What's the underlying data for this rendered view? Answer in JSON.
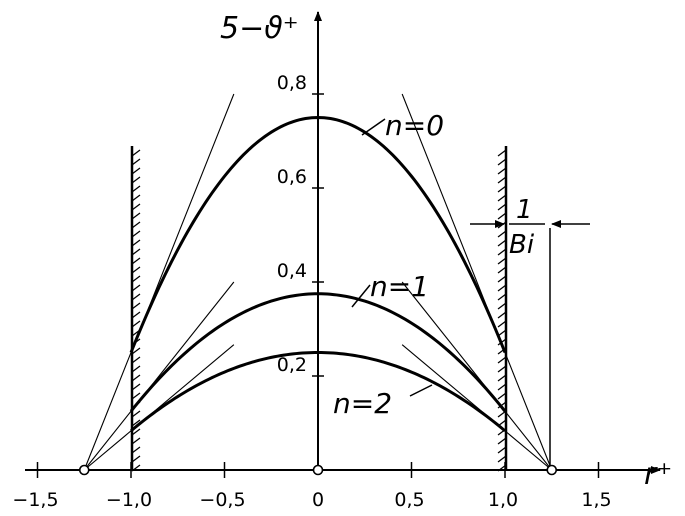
{
  "chart_data": {
    "type": "line",
    "title": "",
    "ylabel": "5−ϑ⁺",
    "xlabel": "r⁺",
    "xlim": [
      -1.6,
      1.75
    ],
    "ylim": [
      0,
      0.95
    ],
    "x_ticks": [
      {
        "v": -1.5,
        "label": "−1,5"
      },
      {
        "v": -1.0,
        "label": "−1,0"
      },
      {
        "v": -0.5,
        "label": "−0,5"
      },
      {
        "v": 0.0,
        "label": "0"
      },
      {
        "v": 0.5,
        "label": "0,5"
      },
      {
        "v": 1.0,
        "label": "1,0"
      },
      {
        "v": 1.5,
        "label": "1,5"
      }
    ],
    "y_ticks": [
      {
        "v": 0.2,
        "label": "0,2"
      },
      {
        "v": 0.4,
        "label": "0,4"
      },
      {
        "v": 0.6,
        "label": "0,6"
      },
      {
        "v": 0.8,
        "label": "0,8"
      }
    ],
    "wall_x": [
      -1.0,
      1.0
    ],
    "tangent_point_x": 1.25,
    "series": [
      {
        "name": "n=0",
        "peak": 0.75,
        "wall_value": 0.25
      },
      {
        "name": "n=1",
        "peak": 0.375,
        "wall_value": 0.125
      },
      {
        "name": "n=2",
        "peak": 0.25,
        "wall_value": 0.0833
      }
    ],
    "annotation": {
      "numerator": "1",
      "denominator": "Bi"
    }
  }
}
